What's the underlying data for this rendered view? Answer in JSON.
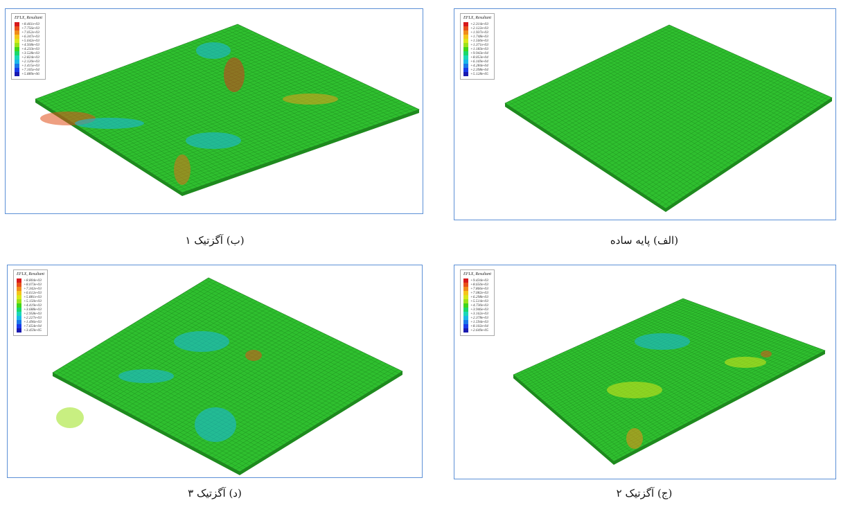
{
  "panels": [
    {
      "legend_title": "EFLX, Resultant",
      "caption": "(ب) آگزتیک ۱",
      "legend_values": [
        "+8.461e-03",
        "+7.756e-03",
        "+7.052e-03",
        "+6.347e-03",
        "+5.642e-03",
        "+4.938e-03",
        "+4.233e-03",
        "+3.528e-03",
        "+2.824e-03",
        "+2.120e-03",
        "+1.415e-03",
        "+7.105e-04",
        "+5.889e-06"
      ]
    },
    {
      "legend_title": "EFLX, Resultant",
      "caption": "(الف) پایه ساده",
      "legend_values": [
        "+2.314e-03",
        "+2.122e-03",
        "+1.937e-03",
        "+1.748e-03",
        "+1.560e-03",
        "+1.371e-03",
        "+1.183e-03",
        "+9.943e-04",
        "+8.053e-04",
        "+6.169e-04",
        "+4.284e-04",
        "+2.398e-04",
        "+5.128e-05"
      ]
    },
    {
      "legend_title": "EFLX, Resultant",
      "caption": "(د) آگزتیک ۳",
      "legend_values": [
        "+8.804e-03",
        "+8.073e-03",
        "+7.342e-03",
        "+6.612e-03",
        "+5.881e-03",
        "+5.150e-03",
        "+4.419e-03",
        "+3.688e-03",
        "+2.958e-03",
        "+2.227e-03",
        "+1.496e-03",
        "+7.654e-04",
        "+3.459e-05"
      ]
    },
    {
      "legend_title": "EFLX, Resultant",
      "caption": "(ج) آگزتیک ۲",
      "legend_values": [
        "+9.434e-03",
        "+8.650e-03",
        "+7.866e-03",
        "+7.082e-03",
        "+6.298e-03",
        "+5.514e-03",
        "+4.730e-03",
        "+3.946e-03",
        "+3.162e-03",
        "+2.378e-03",
        "+1.594e-03",
        "+8.102e-04",
        "+2.649e-05"
      ]
    }
  ]
}
